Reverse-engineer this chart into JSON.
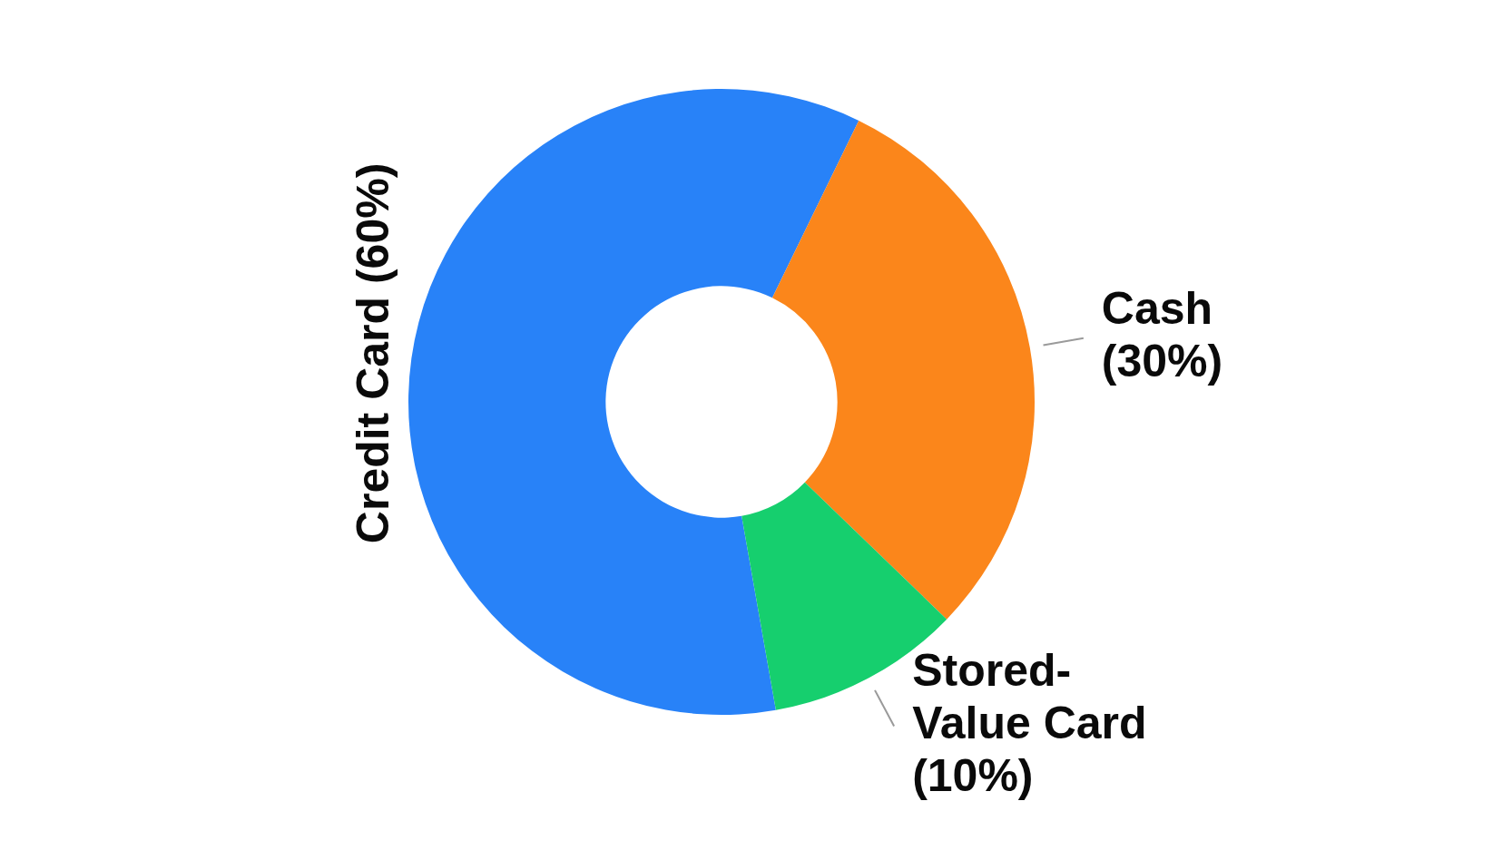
{
  "chart_data": {
    "type": "donut",
    "categories": [
      "Credit Card",
      "Cash",
      "Stored-Value Card"
    ],
    "values": [
      60,
      30,
      10
    ],
    "value_labels": [
      "(60%)",
      "(30%)",
      "(10%)"
    ],
    "colors": [
      "#2882f8",
      "#fb861b",
      "#16cf6e"
    ]
  }
}
